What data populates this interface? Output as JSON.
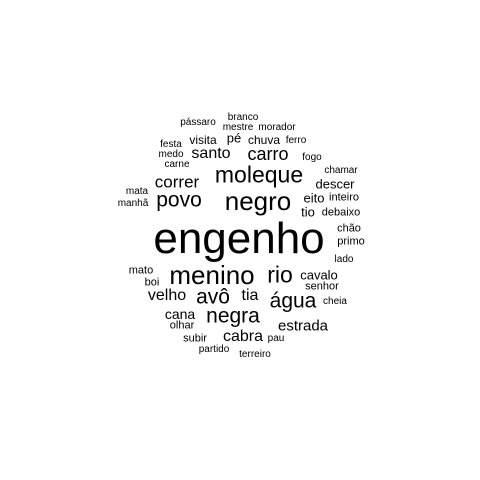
{
  "word_cloud": {
    "text_color": "#000000",
    "background_color": "#ffffff",
    "words": [
      {
        "text": "engenho"
      },
      {
        "text": "negro"
      },
      {
        "text": "menino"
      },
      {
        "text": "moleque"
      },
      {
        "text": "rio"
      },
      {
        "text": "povo"
      },
      {
        "text": "negra"
      },
      {
        "text": "avô"
      },
      {
        "text": "água"
      },
      {
        "text": "carro"
      },
      {
        "text": "correr"
      },
      {
        "text": "santo"
      },
      {
        "text": "cabra"
      },
      {
        "text": "velho"
      },
      {
        "text": "tia"
      },
      {
        "text": "estrada"
      },
      {
        "text": "cana"
      },
      {
        "text": "tio"
      },
      {
        "text": "descer"
      },
      {
        "text": "eito"
      },
      {
        "text": "cavalo"
      },
      {
        "text": "visita"
      },
      {
        "text": "pé"
      },
      {
        "text": "chuva"
      },
      {
        "text": "inteiro"
      },
      {
        "text": "debaixo"
      },
      {
        "text": "primo"
      },
      {
        "text": "senhor"
      },
      {
        "text": "mato"
      },
      {
        "text": "boi"
      },
      {
        "text": "olhar"
      },
      {
        "text": "subir"
      },
      {
        "text": "chão"
      },
      {
        "text": "fogo"
      },
      {
        "text": "pássaro"
      },
      {
        "text": "branco"
      },
      {
        "text": "mestre"
      },
      {
        "text": "morador"
      },
      {
        "text": "ferro"
      },
      {
        "text": "festa"
      },
      {
        "text": "medo"
      },
      {
        "text": "carne"
      },
      {
        "text": "chamar"
      },
      {
        "text": "mata"
      },
      {
        "text": "manhã"
      },
      {
        "text": "lado"
      },
      {
        "text": "cheia"
      },
      {
        "text": "pau"
      },
      {
        "text": "partido"
      },
      {
        "text": "terreiro"
      }
    ]
  }
}
